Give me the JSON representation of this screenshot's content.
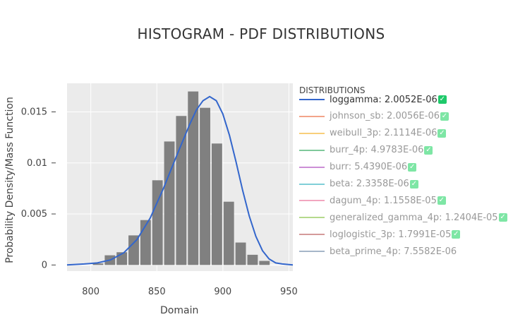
{
  "chart_data": {
    "type": "bar",
    "title": "HISTOGRAM - PDF DISTRIBUTIONS",
    "xlabel": "Domain",
    "ylabel": "Probability Density/Mass Function",
    "xlim": [
      782,
      953
    ],
    "ylim": [
      -0.0006,
      0.0178
    ],
    "x_ticks": [
      800,
      850,
      900,
      950
    ],
    "y_ticks": [
      0,
      0.005,
      0.01,
      0.015
    ],
    "y_tick_labels": [
      "0",
      "0.005",
      "0.01",
      "0.015"
    ],
    "grid": true,
    "bin_width": 9,
    "bins": [
      {
        "x": 805.5,
        "y": 0.00015
      },
      {
        "x": 814.5,
        "y": 0.00095
      },
      {
        "x": 823.5,
        "y": 0.00125
      },
      {
        "x": 832.5,
        "y": 0.0029
      },
      {
        "x": 841.5,
        "y": 0.0044
      },
      {
        "x": 850.5,
        "y": 0.0083
      },
      {
        "x": 859.5,
        "y": 0.0121
      },
      {
        "x": 868.5,
        "y": 0.0146
      },
      {
        "x": 877.5,
        "y": 0.017
      },
      {
        "x": 886.5,
        "y": 0.0154
      },
      {
        "x": 895.5,
        "y": 0.0119
      },
      {
        "x": 904.5,
        "y": 0.0062
      },
      {
        "x": 913.5,
        "y": 0.0022
      },
      {
        "x": 922.5,
        "y": 0.001
      },
      {
        "x": 931.5,
        "y": 0.0004
      }
    ],
    "pdf_series": {
      "name": "loggamma",
      "color": "#3366cc",
      "points": [
        [
          782,
          0.0
        ],
        [
          795,
          0.0001
        ],
        [
          805,
          0.0002
        ],
        [
          815,
          0.0005
        ],
        [
          825,
          0.0012
        ],
        [
          835,
          0.0025
        ],
        [
          845,
          0.0046
        ],
        [
          855,
          0.0075
        ],
        [
          865,
          0.0107
        ],
        [
          875,
          0.0138
        ],
        [
          880,
          0.0152
        ],
        [
          885,
          0.0161
        ],
        [
          890,
          0.0165
        ],
        [
          895,
          0.0161
        ],
        [
          900,
          0.0148
        ],
        [
          905,
          0.0127
        ],
        [
          910,
          0.0101
        ],
        [
          915,
          0.0073
        ],
        [
          920,
          0.0048
        ],
        [
          925,
          0.0028
        ],
        [
          930,
          0.0014
        ],
        [
          935,
          0.0006
        ],
        [
          940,
          0.0002
        ],
        [
          945,
          0.0001
        ],
        [
          953,
          0.0
        ]
      ]
    },
    "legend": {
      "title": "DISTRIBUTIONS",
      "position": "right",
      "items": [
        {
          "label": "loggamma: 2.0052E-06",
          "color": "#3366cc",
          "active": true,
          "check": true
        },
        {
          "label": "johnson_sb: 2.0056E-06",
          "color": "#f3a48a",
          "active": false,
          "check": true
        },
        {
          "label": "weibull_3p: 2.1114E-06",
          "color": "#f8cf7a",
          "active": false,
          "check": true
        },
        {
          "label": "burr_4p: 4.9783E-06",
          "color": "#7fc99b",
          "active": false,
          "check": true
        },
        {
          "label": "burr: 5.4390E-06",
          "color": "#cc8fd6",
          "active": false,
          "check": true
        },
        {
          "label": "beta: 2.3358E-06",
          "color": "#80cfd8",
          "active": false,
          "check": true
        },
        {
          "label": "dagum_4p: 1.1558E-05",
          "color": "#f2a6bf",
          "active": false,
          "check": true
        },
        {
          "label": "generalized_gamma_4p: 1.2404E-05",
          "color": "#b5d98c",
          "active": false,
          "check": true
        },
        {
          "label": "loglogistic_3p: 1.7991E-05",
          "color": "#d49a9a",
          "active": false,
          "check": true
        },
        {
          "label": "beta_prime_4p: 7.5582E-06",
          "color": "#a6b6c9",
          "active": false,
          "check": false
        }
      ]
    }
  },
  "check_glyph": "✓",
  "colors": {
    "plot_bg": "#ebebeb",
    "bar": "#808080",
    "grid": "#ffffff"
  }
}
